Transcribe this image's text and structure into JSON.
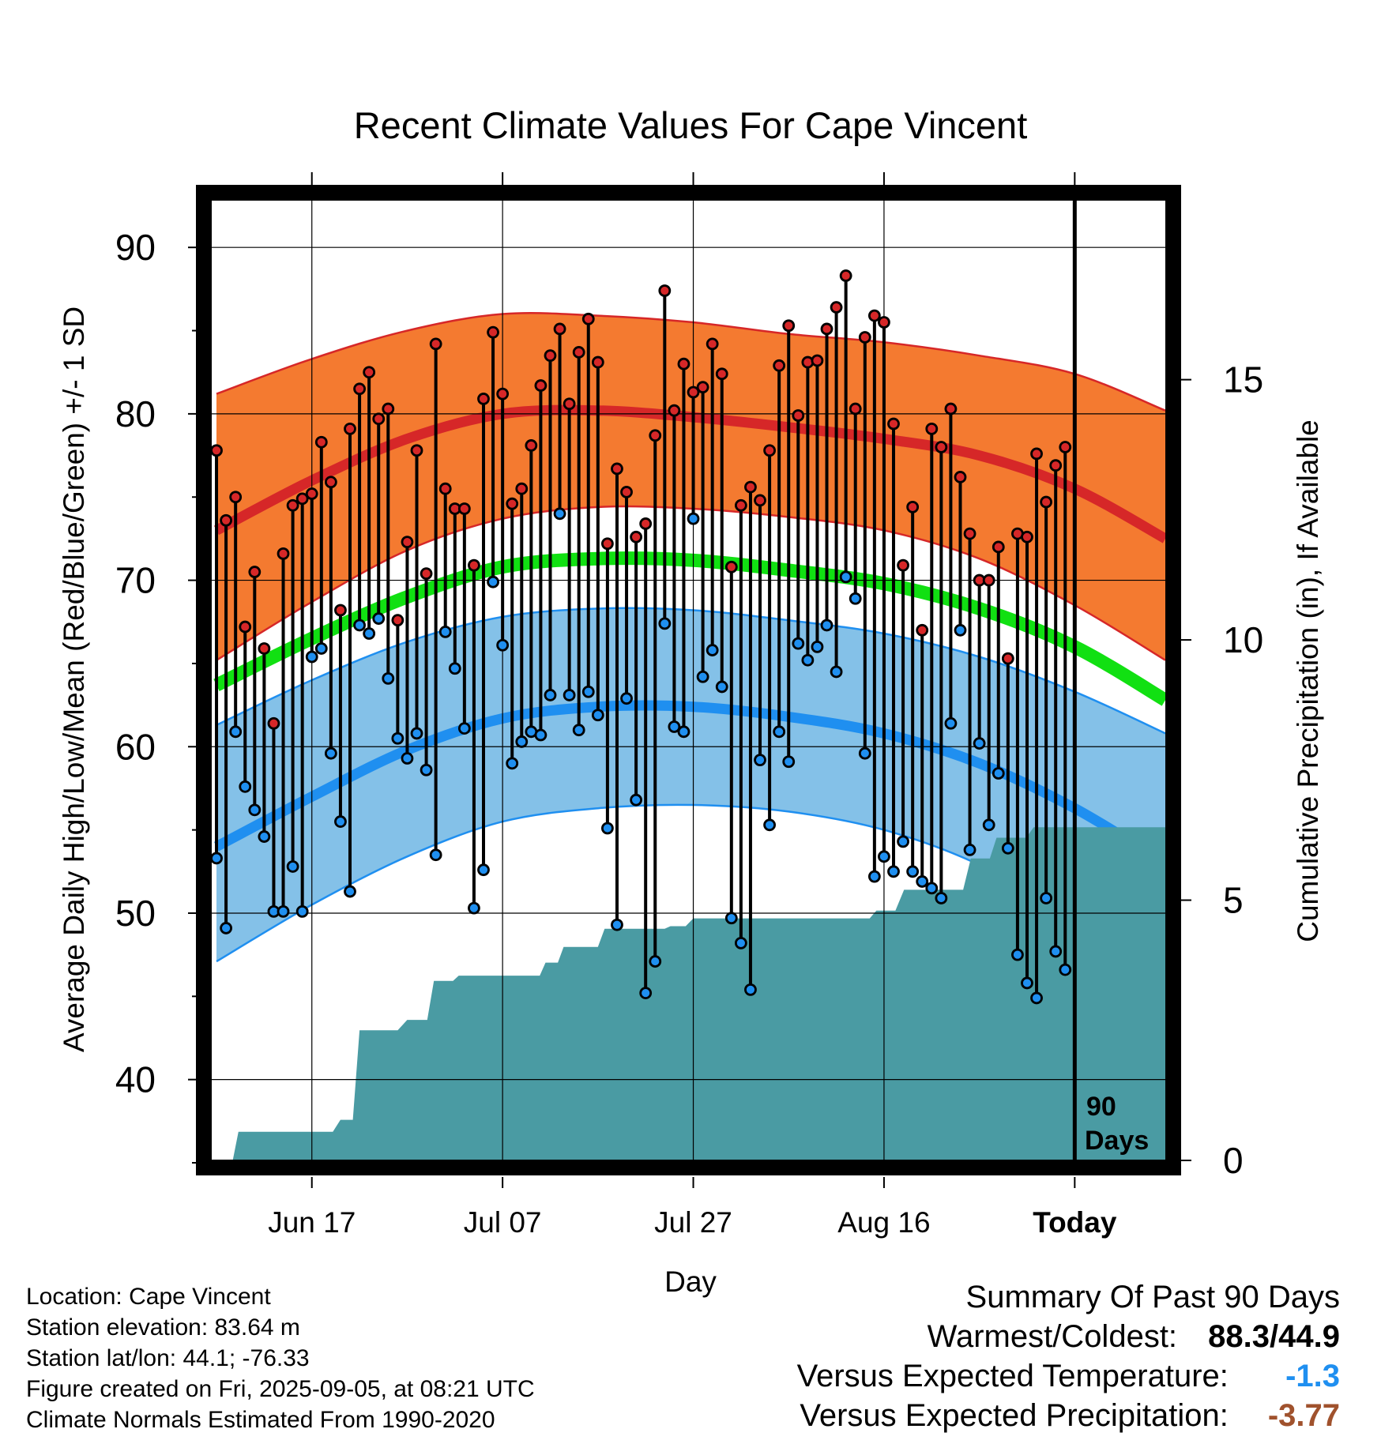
{
  "chart_data": {
    "type": "line",
    "title": "Recent Climate Values For Cape Vincent",
    "xlabel": "Day",
    "ylabel": "Average Daily High/Low/Mean (Red/Blue/Green) +/- 1 SD",
    "y2label": "Cumulative Precipitation (in), If Available",
    "ylim": [
      35,
      93
    ],
    "y2lim": [
      0,
      18.5
    ],
    "y_ticks": [
      40,
      50,
      60,
      70,
      80,
      90
    ],
    "y2_ticks": [
      0,
      5,
      10,
      15
    ],
    "x_ticks": [
      {
        "day": 10,
        "label": "Jun 17"
      },
      {
        "day": 30,
        "label": "Jul 07"
      },
      {
        "day": 50,
        "label": "Jul 27"
      },
      {
        "day": 70,
        "label": "Aug 16"
      },
      {
        "day": 90,
        "label": "Today"
      }
    ],
    "x_range": [
      -0.5,
      99.5
    ],
    "today_marker": {
      "day": 90,
      "label_line1": "90",
      "label_line2": "Days"
    },
    "normals": {
      "day": [
        0,
        10,
        20,
        30,
        40,
        50,
        60,
        70,
        80,
        90,
        99.5
      ],
      "high_mean": [
        73.0,
        76.0,
        78.5,
        80.0,
        80.2,
        79.8,
        79.2,
        78.5,
        77.5,
        75.5,
        72.5
      ],
      "high_plus_sd": [
        81.2,
        83.3,
        85.0,
        86.0,
        85.9,
        85.5,
        84.8,
        84.3,
        83.5,
        82.4,
        80.2
      ],
      "high_minus_sd": [
        65.2,
        68.7,
        71.8,
        73.7,
        74.4,
        74.3,
        73.8,
        73.0,
        71.3,
        68.5,
        65.2
      ],
      "mean": [
        63.7,
        66.5,
        69.0,
        70.8,
        71.3,
        71.2,
        70.6,
        69.8,
        68.3,
        66.0,
        62.8
      ],
      "low_mean": [
        54.0,
        57.0,
        59.8,
        61.7,
        62.4,
        62.4,
        61.8,
        60.8,
        59.0,
        56.3,
        53.0
      ],
      "low_plus_sd": [
        61.3,
        64.0,
        66.3,
        67.8,
        68.3,
        68.2,
        67.6,
        66.8,
        65.4,
        63.3,
        60.8
      ],
      "low_minus_sd": [
        47.1,
        50.5,
        53.4,
        55.5,
        56.3,
        56.5,
        56.1,
        55.0,
        52.9,
        49.6,
        45.7
      ]
    },
    "series": [
      {
        "name": "High",
        "color": "#d62728",
        "values": [
          77.8,
          73.6,
          75.0,
          67.2,
          70.5,
          65.9,
          61.4,
          71.6,
          74.5,
          74.9,
          75.2,
          78.3,
          75.9,
          68.2,
          79.1,
          81.5,
          82.5,
          79.7,
          80.3,
          67.6,
          72.3,
          77.8,
          70.4,
          84.2,
          75.5,
          74.3,
          74.3,
          70.9,
          80.9,
          84.9,
          81.2,
          74.6,
          75.5,
          78.1,
          81.7,
          83.5,
          85.1,
          80.6,
          83.7,
          85.7,
          83.1,
          72.2,
          76.7,
          75.3,
          72.6,
          73.4,
          78.7,
          87.4,
          80.2,
          83.0,
          81.3,
          81.6,
          84.2,
          82.4,
          70.8,
          74.5,
          75.6,
          74.8,
          77.8,
          82.9,
          85.3,
          79.9,
          83.1,
          83.2,
          85.1,
          86.4,
          88.3,
          80.3,
          84.6,
          85.9,
          85.5,
          79.4,
          70.9,
          74.4,
          67.0,
          79.1,
          78.0,
          80.3,
          76.2,
          72.8,
          70.0,
          70.0,
          72.0,
          65.3,
          72.8,
          72.6,
          77.6,
          74.7,
          76.9,
          78.0
        ]
      },
      {
        "name": "Low",
        "color": "#1f8ff0",
        "values": [
          53.3,
          49.1,
          60.9,
          57.6,
          56.2,
          54.6,
          50.1,
          50.1,
          52.8,
          50.1,
          65.4,
          65.9,
          59.6,
          55.5,
          51.3,
          67.3,
          66.8,
          67.7,
          64.1,
          60.5,
          59.3,
          60.8,
          58.6,
          53.5,
          66.9,
          64.7,
          61.1,
          50.3,
          52.6,
          69.9,
          66.1,
          59.0,
          60.3,
          60.9,
          60.7,
          63.1,
          74.0,
          63.1,
          61.0,
          63.3,
          61.9,
          55.1,
          49.3,
          62.9,
          56.8,
          45.2,
          47.1,
          67.4,
          61.2,
          60.9,
          73.7,
          64.2,
          65.8,
          63.6,
          49.7,
          48.2,
          45.4,
          59.2,
          55.3,
          60.9,
          59.1,
          66.2,
          65.2,
          66.0,
          67.3,
          64.5,
          70.2,
          68.9,
          59.6,
          52.2,
          53.4,
          52.5,
          54.3,
          52.5,
          51.9,
          51.5,
          50.9,
          61.4,
          67.0,
          53.8,
          60.2,
          55.3,
          58.4,
          53.9,
          47.5,
          45.8,
          44.9,
          50.9,
          47.7,
          46.6
        ]
      }
    ],
    "precip_cumulative": {
      "day": [
        1,
        1.7,
        2.3,
        12.2,
        13,
        14.3,
        15,
        19,
        20,
        22.1,
        22.8,
        24.8,
        25.4,
        33.9,
        34.5,
        35.8,
        36.4,
        40,
        40.7,
        47,
        47.6,
        49.2,
        50,
        68.5,
        69.2,
        71.2,
        72.1,
        78.3,
        79.1,
        81.1,
        81.8,
        84.9,
        85.7,
        92,
        99.5
      ],
      "values": [
        0,
        0,
        0.55,
        0.55,
        0.78,
        0.78,
        2.5,
        2.5,
        2.7,
        2.7,
        3.45,
        3.45,
        3.55,
        3.55,
        3.8,
        3.8,
        4.1,
        4.1,
        4.45,
        4.45,
        4.5,
        4.5,
        4.65,
        4.65,
        4.8,
        4.8,
        5.2,
        5.2,
        5.8,
        5.8,
        6.2,
        6.2,
        6.4,
        6.4,
        6.4
      ]
    }
  },
  "info": {
    "location": "Location: Cape Vincent",
    "elevation": "Station elevation: 83.64 m",
    "latlon": "Station lat/lon: 44.1; -76.33",
    "created": "Figure created on Fri, 2025-09-05, at 08:21 UTC",
    "normals": "Climate Normals Estimated From 1990-2020"
  },
  "summary": {
    "title": "Summary Of Past 90 Days",
    "warm_cold_label": "Warmest/Coldest:",
    "warm_cold_value": "88.3/44.9",
    "temp_label": "Versus Expected Temperature:",
    "temp_value": "-1.3",
    "temp_color": "#1f8ff0",
    "precip_label": "Versus Expected Precipitation:",
    "precip_value": "-3.77",
    "precip_color": "#a0522d"
  },
  "colors": {
    "high_band": "#f47a30",
    "high_line": "#d62728",
    "low_band": "#84c1e8",
    "low_line": "#1f8ff0",
    "mean_line": "#11e012",
    "precip_fill": "#4a9ba3",
    "high_dot": "#d62728",
    "low_dot": "#1f8ff0"
  }
}
